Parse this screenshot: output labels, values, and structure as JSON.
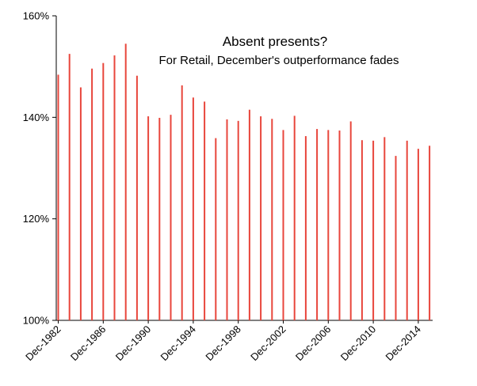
{
  "chart_data": {
    "type": "bar",
    "title": "Absent presents?",
    "subtitle": "For Retail, December's outperformance fades",
    "xlabel": "",
    "ylabel": "",
    "ylim": [
      100,
      160
    ],
    "y_ticks": [
      "100%",
      "120%",
      "140%",
      "160%"
    ],
    "y_tick_values": [
      100,
      120,
      140,
      160
    ],
    "x_tick_labels": [
      "Dec-1982",
      "Dec-1986",
      "Dec-1990",
      "Dec-1994",
      "Dec-1998",
      "Dec-2002",
      "Dec-2006",
      "Dec-2010",
      "Dec-2014"
    ],
    "categories": [
      "Dec-1982",
      "Dec-1983",
      "Dec-1984",
      "Dec-1985",
      "Dec-1986",
      "Dec-1987",
      "Dec-1988",
      "Dec-1989",
      "Dec-1990",
      "Dec-1991",
      "Dec-1992",
      "Dec-1993",
      "Dec-1994",
      "Dec-1995",
      "Dec-1996",
      "Dec-1997",
      "Dec-1998",
      "Dec-1999",
      "Dec-2000",
      "Dec-2001",
      "Dec-2002",
      "Dec-2003",
      "Dec-2004",
      "Dec-2005",
      "Dec-2006",
      "Dec-2007",
      "Dec-2008",
      "Dec-2009",
      "Dec-2010",
      "Dec-2011",
      "Dec-2012",
      "Dec-2013",
      "Dec-2014",
      "Dec-2015"
    ],
    "values": [
      148.4,
      152.5,
      145.9,
      149.6,
      150.7,
      152.2,
      154.5,
      148.2,
      140.2,
      139.9,
      140.5,
      146.3,
      143.9,
      143.1,
      135.9,
      139.6,
      139.3,
      141.5,
      140.2,
      139.7,
      137.5,
      140.3,
      136.3,
      137.7,
      137.5,
      137.4,
      139.2,
      135.5,
      135.4,
      136.1,
      132.4,
      135.4,
      133.8,
      134.4
    ],
    "units": "%",
    "grid": false,
    "legend": "none",
    "bar_color": "#e8463c"
  }
}
